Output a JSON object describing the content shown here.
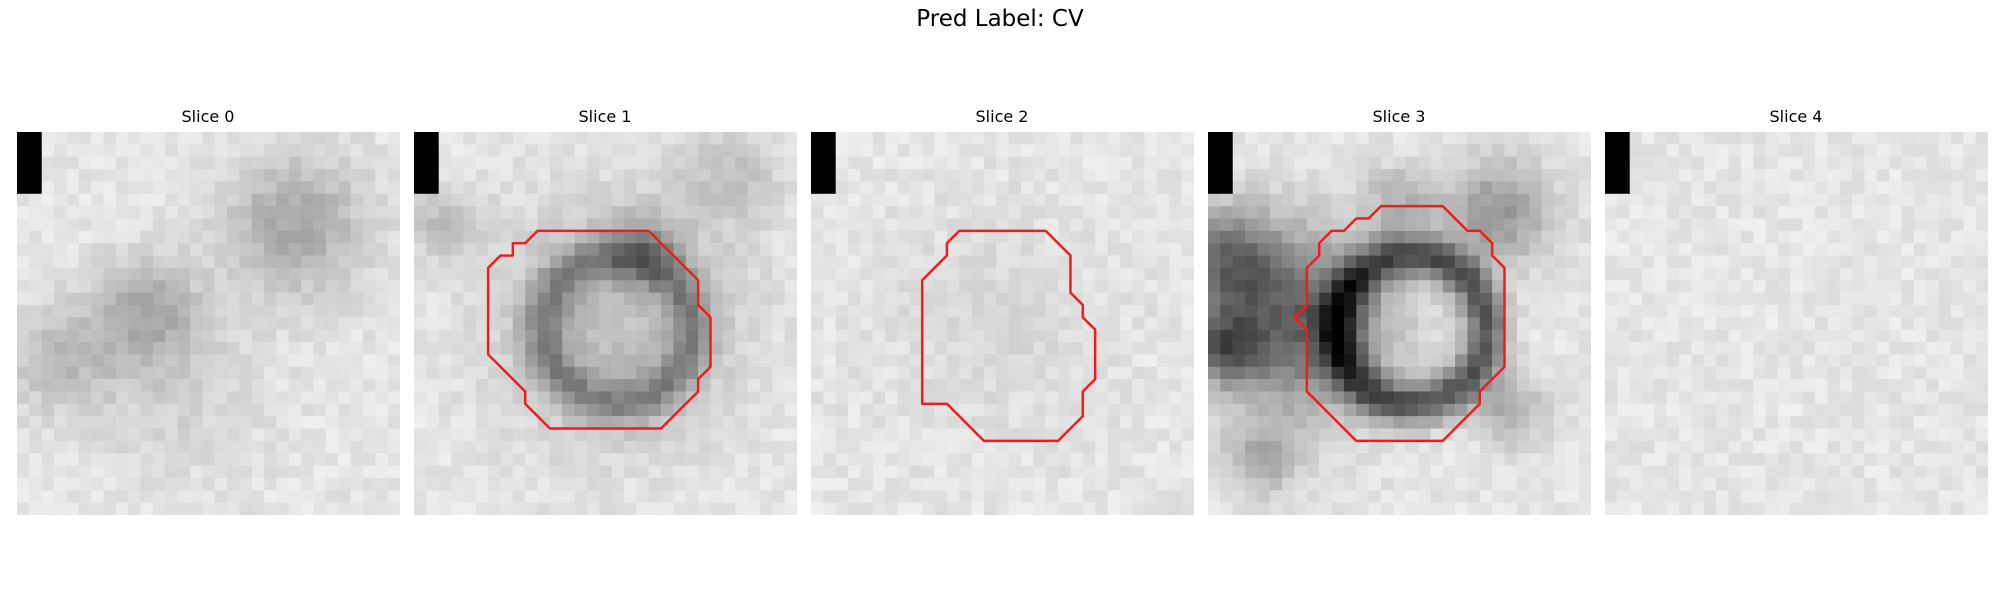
{
  "figure": {
    "title": "Pred Label: CV"
  },
  "colors": {
    "contour": "#ee1c1c",
    "marker": "#000000"
  },
  "panels": [
    {
      "title": "Slice 0",
      "has_contour": false,
      "blobs": [
        [
          22,
          7,
          4,
          0.55
        ],
        [
          10,
          14,
          3,
          0.5
        ],
        [
          3,
          18,
          3,
          0.35
        ],
        [
          12,
          20,
          5,
          0.18
        ]
      ]
    },
    {
      "title": "Slice 1",
      "has_contour": true,
      "blobs": [
        [
          16,
          15,
          6,
          0.6
        ],
        [
          16,
          15,
          3,
          -0.3
        ],
        [
          25,
          3,
          3,
          0.3
        ],
        [
          18,
          9,
          2,
          0.45
        ],
        [
          2,
          7,
          2,
          0.35
        ]
      ]
    },
    {
      "title": "Slice 2",
      "has_contour": true,
      "blobs": [
        [
          14,
          15,
          6,
          0.12
        ]
      ]
    },
    {
      "title": "Slice 3",
      "has_contour": true,
      "blobs": [
        [
          7,
          15,
          5,
          1.1
        ],
        [
          1,
          10,
          3,
          0.9
        ],
        [
          23,
          6,
          3,
          0.7
        ],
        [
          15,
          5,
          2,
          0.4
        ],
        [
          24,
          22,
          2,
          0.5
        ],
        [
          4,
          26,
          2,
          0.5
        ],
        [
          1,
          17,
          2,
          0.9
        ]
      ]
    },
    {
      "title": "Slice 4",
      "has_contour": false,
      "blobs": []
    }
  ]
}
